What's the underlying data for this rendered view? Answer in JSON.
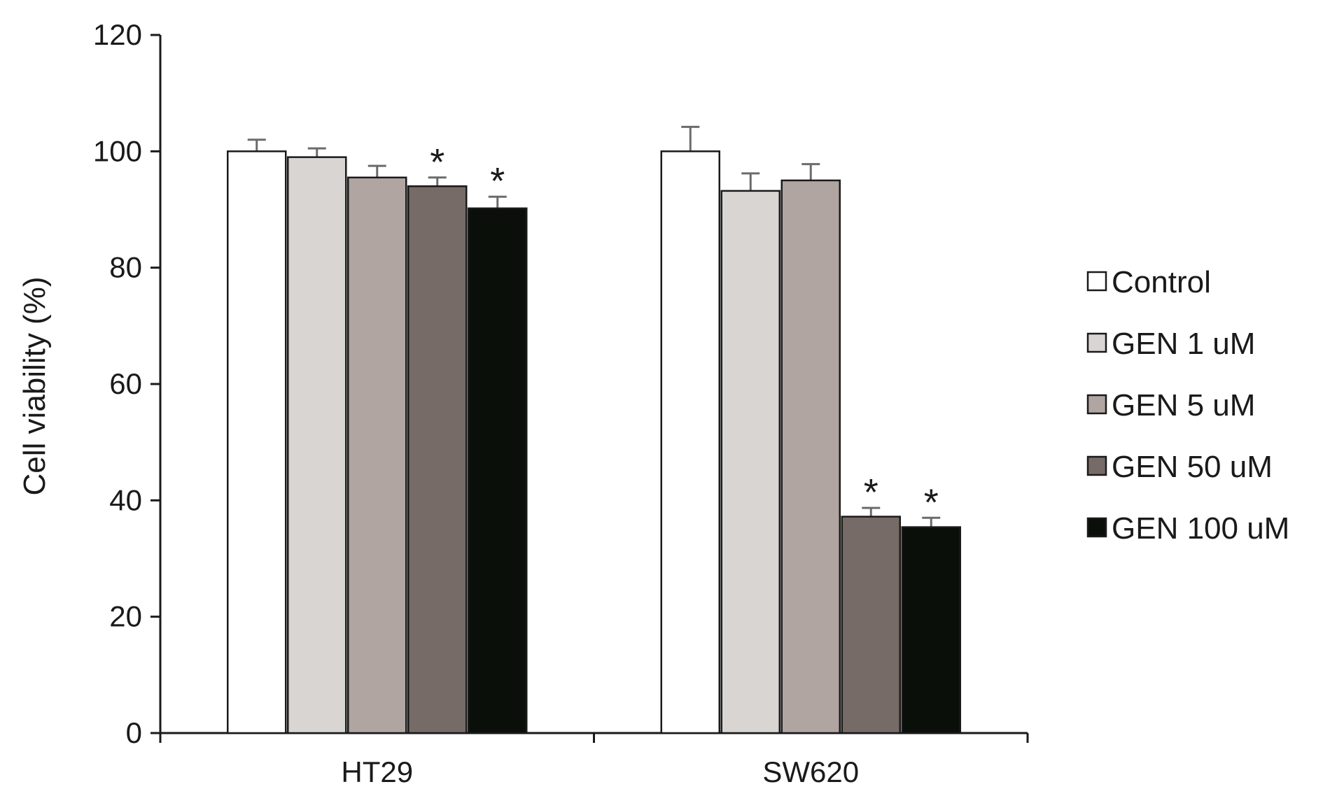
{
  "chart_data": {
    "type": "bar",
    "title": "",
    "xlabel": "",
    "ylabel": "Cell viability (%)",
    "ylim": [
      0,
      120
    ],
    "yticks": [
      0,
      20,
      40,
      60,
      80,
      100,
      120
    ],
    "categories": [
      "HT29",
      "SW620"
    ],
    "grid": false,
    "legend_position": "right",
    "series": [
      {
        "name": "Control",
        "color": "#ffffff",
        "values": [
          100,
          100
        ],
        "errors": [
          2.0,
          4.2
        ],
        "significant": [
          false,
          false
        ]
      },
      {
        "name": "GEN 1 uM",
        "color": "#d9d5d3",
        "values": [
          99,
          93.2
        ],
        "errors": [
          1.5,
          3.0
        ],
        "significant": [
          false,
          false
        ]
      },
      {
        "name": "GEN 5 uM",
        "color": "#b0a5a1",
        "values": [
          95.5,
          95
        ],
        "errors": [
          2.0,
          2.8
        ],
        "significant": [
          false,
          false
        ]
      },
      {
        "name": "GEN 50 uM",
        "color": "#766b67",
        "values": [
          94,
          37.2
        ],
        "errors": [
          1.5,
          1.5
        ],
        "significant": [
          true,
          true
        ]
      },
      {
        "name": "GEN 100 uM",
        "color": "#0b0f0a",
        "values": [
          90.2,
          35.4
        ],
        "errors": [
          2.0,
          1.6
        ],
        "significant": [
          true,
          true
        ]
      }
    ],
    "significance_marker": "*"
  }
}
